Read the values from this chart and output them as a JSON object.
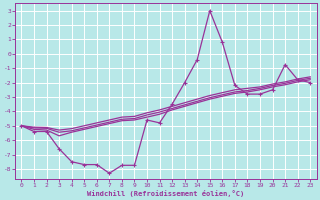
{
  "xlabel": "Windchill (Refroidissement éolien,°C)",
  "background_color": "#b8e8e8",
  "grid_color": "#ffffff",
  "line_color": "#993399",
  "xlim": [
    -0.5,
    23.5
  ],
  "ylim": [
    -8.7,
    3.5
  ],
  "yticks": [
    3,
    2,
    1,
    0,
    -1,
    -2,
    -3,
    -4,
    -5,
    -6,
    -7,
    -8
  ],
  "xticks": [
    0,
    1,
    2,
    3,
    4,
    5,
    6,
    7,
    8,
    9,
    10,
    11,
    12,
    13,
    14,
    15,
    16,
    17,
    18,
    19,
    20,
    21,
    22,
    23
  ],
  "series_main": [
    -5.0,
    -5.4,
    -5.4,
    -6.6,
    -7.5,
    -7.7,
    -7.7,
    -8.3,
    -7.75,
    -7.75,
    -4.6,
    -4.8,
    -3.5,
    -2.0,
    -0.4,
    3.0,
    0.8,
    -2.2,
    -2.8,
    -2.8,
    -2.5,
    -0.75,
    -1.8,
    -2.0
  ],
  "series_smooth1": [
    -5.0,
    -5.25,
    -5.3,
    -5.7,
    -5.45,
    -5.25,
    -5.05,
    -4.85,
    -4.65,
    -4.6,
    -4.4,
    -4.2,
    -3.9,
    -3.65,
    -3.4,
    -3.15,
    -2.95,
    -2.75,
    -2.65,
    -2.5,
    -2.3,
    -2.15,
    -1.95,
    -1.8
  ],
  "series_smooth2": [
    -5.0,
    -5.15,
    -5.18,
    -5.45,
    -5.35,
    -5.15,
    -4.95,
    -4.75,
    -4.55,
    -4.5,
    -4.25,
    -4.05,
    -3.8,
    -3.55,
    -3.3,
    -3.05,
    -2.85,
    -2.65,
    -2.55,
    -2.4,
    -2.2,
    -2.05,
    -1.85,
    -1.7
  ],
  "series_smooth3": [
    -5.0,
    -5.1,
    -5.12,
    -5.3,
    -5.2,
    -5.0,
    -4.8,
    -4.6,
    -4.4,
    -4.35,
    -4.1,
    -3.9,
    -3.65,
    -3.4,
    -3.15,
    -2.9,
    -2.7,
    -2.5,
    -2.4,
    -2.3,
    -2.1,
    -1.95,
    -1.75,
    -1.6
  ]
}
